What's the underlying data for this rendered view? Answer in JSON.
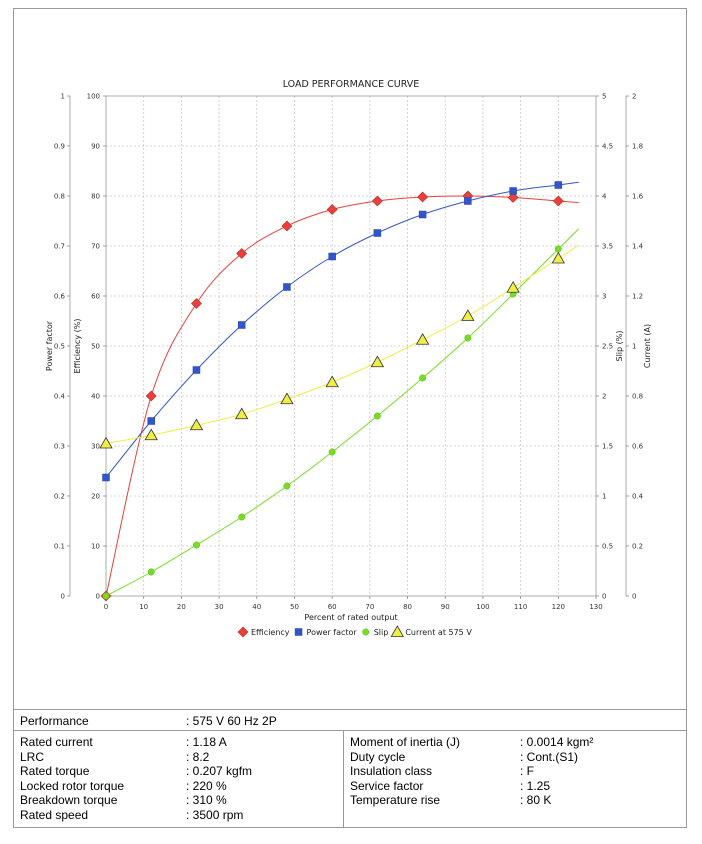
{
  "chart_data": {
    "type": "line",
    "title": "LOAD PERFORMANCE CURVE",
    "xlabel": "Percent of rated output",
    "xlim": [
      0,
      130
    ],
    "x_ticks": [
      "0",
      "10",
      "20",
      "30",
      "40",
      "50",
      "60",
      "70",
      "80",
      "90",
      "100",
      "110",
      "120",
      "130"
    ],
    "axes": {
      "power_factor": {
        "label": "Power factor",
        "lim": [
          0,
          1
        ],
        "ticks": [
          "0",
          "0.1",
          "0.2",
          "0.3",
          "0.4",
          "0.5",
          "0.6",
          "0.7",
          "0.8",
          "0.9",
          "1"
        ]
      },
      "efficiency": {
        "label": "Efficiency (%)",
        "lim": [
          0,
          100
        ],
        "ticks": [
          "0",
          "10",
          "20",
          "30",
          "40",
          "50",
          "60",
          "70",
          "80",
          "90",
          "100"
        ]
      },
      "slip": {
        "label": "Slip (%)",
        "lim": [
          0,
          5
        ],
        "ticks": [
          "0",
          "0.5",
          "1",
          "1.5",
          "2",
          "2.5",
          "3",
          "3.5",
          "4",
          "4.5",
          "5"
        ]
      },
      "current": {
        "label": "Current (A)",
        "lim": [
          0,
          2
        ],
        "ticks": [
          "0",
          "0.2",
          "0.4",
          "0.6",
          "0.8",
          "1",
          "1.2",
          "1.4",
          "1.6",
          "1.8",
          "2"
        ]
      }
    },
    "grid": true,
    "legend_position": "bottom",
    "series": [
      {
        "name": "Efficiency",
        "axis": "efficiency",
        "color": "#e8413c",
        "marker": "diamond",
        "x": [
          0,
          12,
          24,
          36,
          48,
          60,
          72,
          84,
          96,
          108,
          120
        ],
        "values": [
          0,
          40,
          58.5,
          68.5,
          74,
          77.3,
          79,
          79.8,
          80,
          79.7,
          79
        ]
      },
      {
        "name": "Power factor",
        "axis": "power_factor",
        "color": "#3355cc",
        "marker": "square",
        "x": [
          0,
          12,
          24,
          36,
          48,
          60,
          72,
          84,
          96,
          108,
          120
        ],
        "values": [
          0.237,
          0.35,
          0.452,
          0.542,
          0.618,
          0.679,
          0.726,
          0.763,
          0.79,
          0.81,
          0.822
        ]
      },
      {
        "name": "Slip",
        "axis": "slip",
        "color": "#77dd22",
        "marker": "circle",
        "x": [
          0,
          12,
          24,
          36,
          48,
          60,
          72,
          84,
          96,
          108,
          120
        ],
        "values": [
          0,
          0.24,
          0.51,
          0.79,
          1.1,
          1.44,
          1.8,
          2.18,
          2.58,
          3.02,
          3.47
        ]
      },
      {
        "name": "Current at 575 V",
        "axis": "current",
        "color": "#eeee44",
        "marker": "triangle",
        "x": [
          0,
          12,
          24,
          36,
          48,
          60,
          72,
          84,
          96,
          108,
          120
        ],
        "values": [
          0.61,
          0.643,
          0.683,
          0.727,
          0.787,
          0.855,
          0.935,
          1.025,
          1.12,
          1.233,
          1.35
        ]
      }
    ]
  },
  "specs": {
    "performance_label": "Performance",
    "performance_value": ": 575 V 60 Hz 2P",
    "left": [
      {
        "label": "Rated current",
        "value": ": 1.18 A"
      },
      {
        "label": "LRC",
        "value": ": 8.2"
      },
      {
        "label": "Rated torque",
        "value": ": 0.207 kgfm"
      },
      {
        "label": "Locked rotor torque",
        "value": ": 220 %"
      },
      {
        "label": "Breakdown torque",
        "value": ": 310 %"
      },
      {
        "label": "Rated speed",
        "value": ": 3500 rpm"
      }
    ],
    "right": [
      {
        "label": "Moment of inertia (J)",
        "value": ": 0.0014 kgm²"
      },
      {
        "label": "Duty cycle",
        "value": ": Cont.(S1)"
      },
      {
        "label": "Insulation class",
        "value": ": F"
      },
      {
        "label": "Service factor",
        "value": ": 1.25"
      },
      {
        "label": "Temperature rise",
        "value": ": 80 K"
      }
    ]
  }
}
